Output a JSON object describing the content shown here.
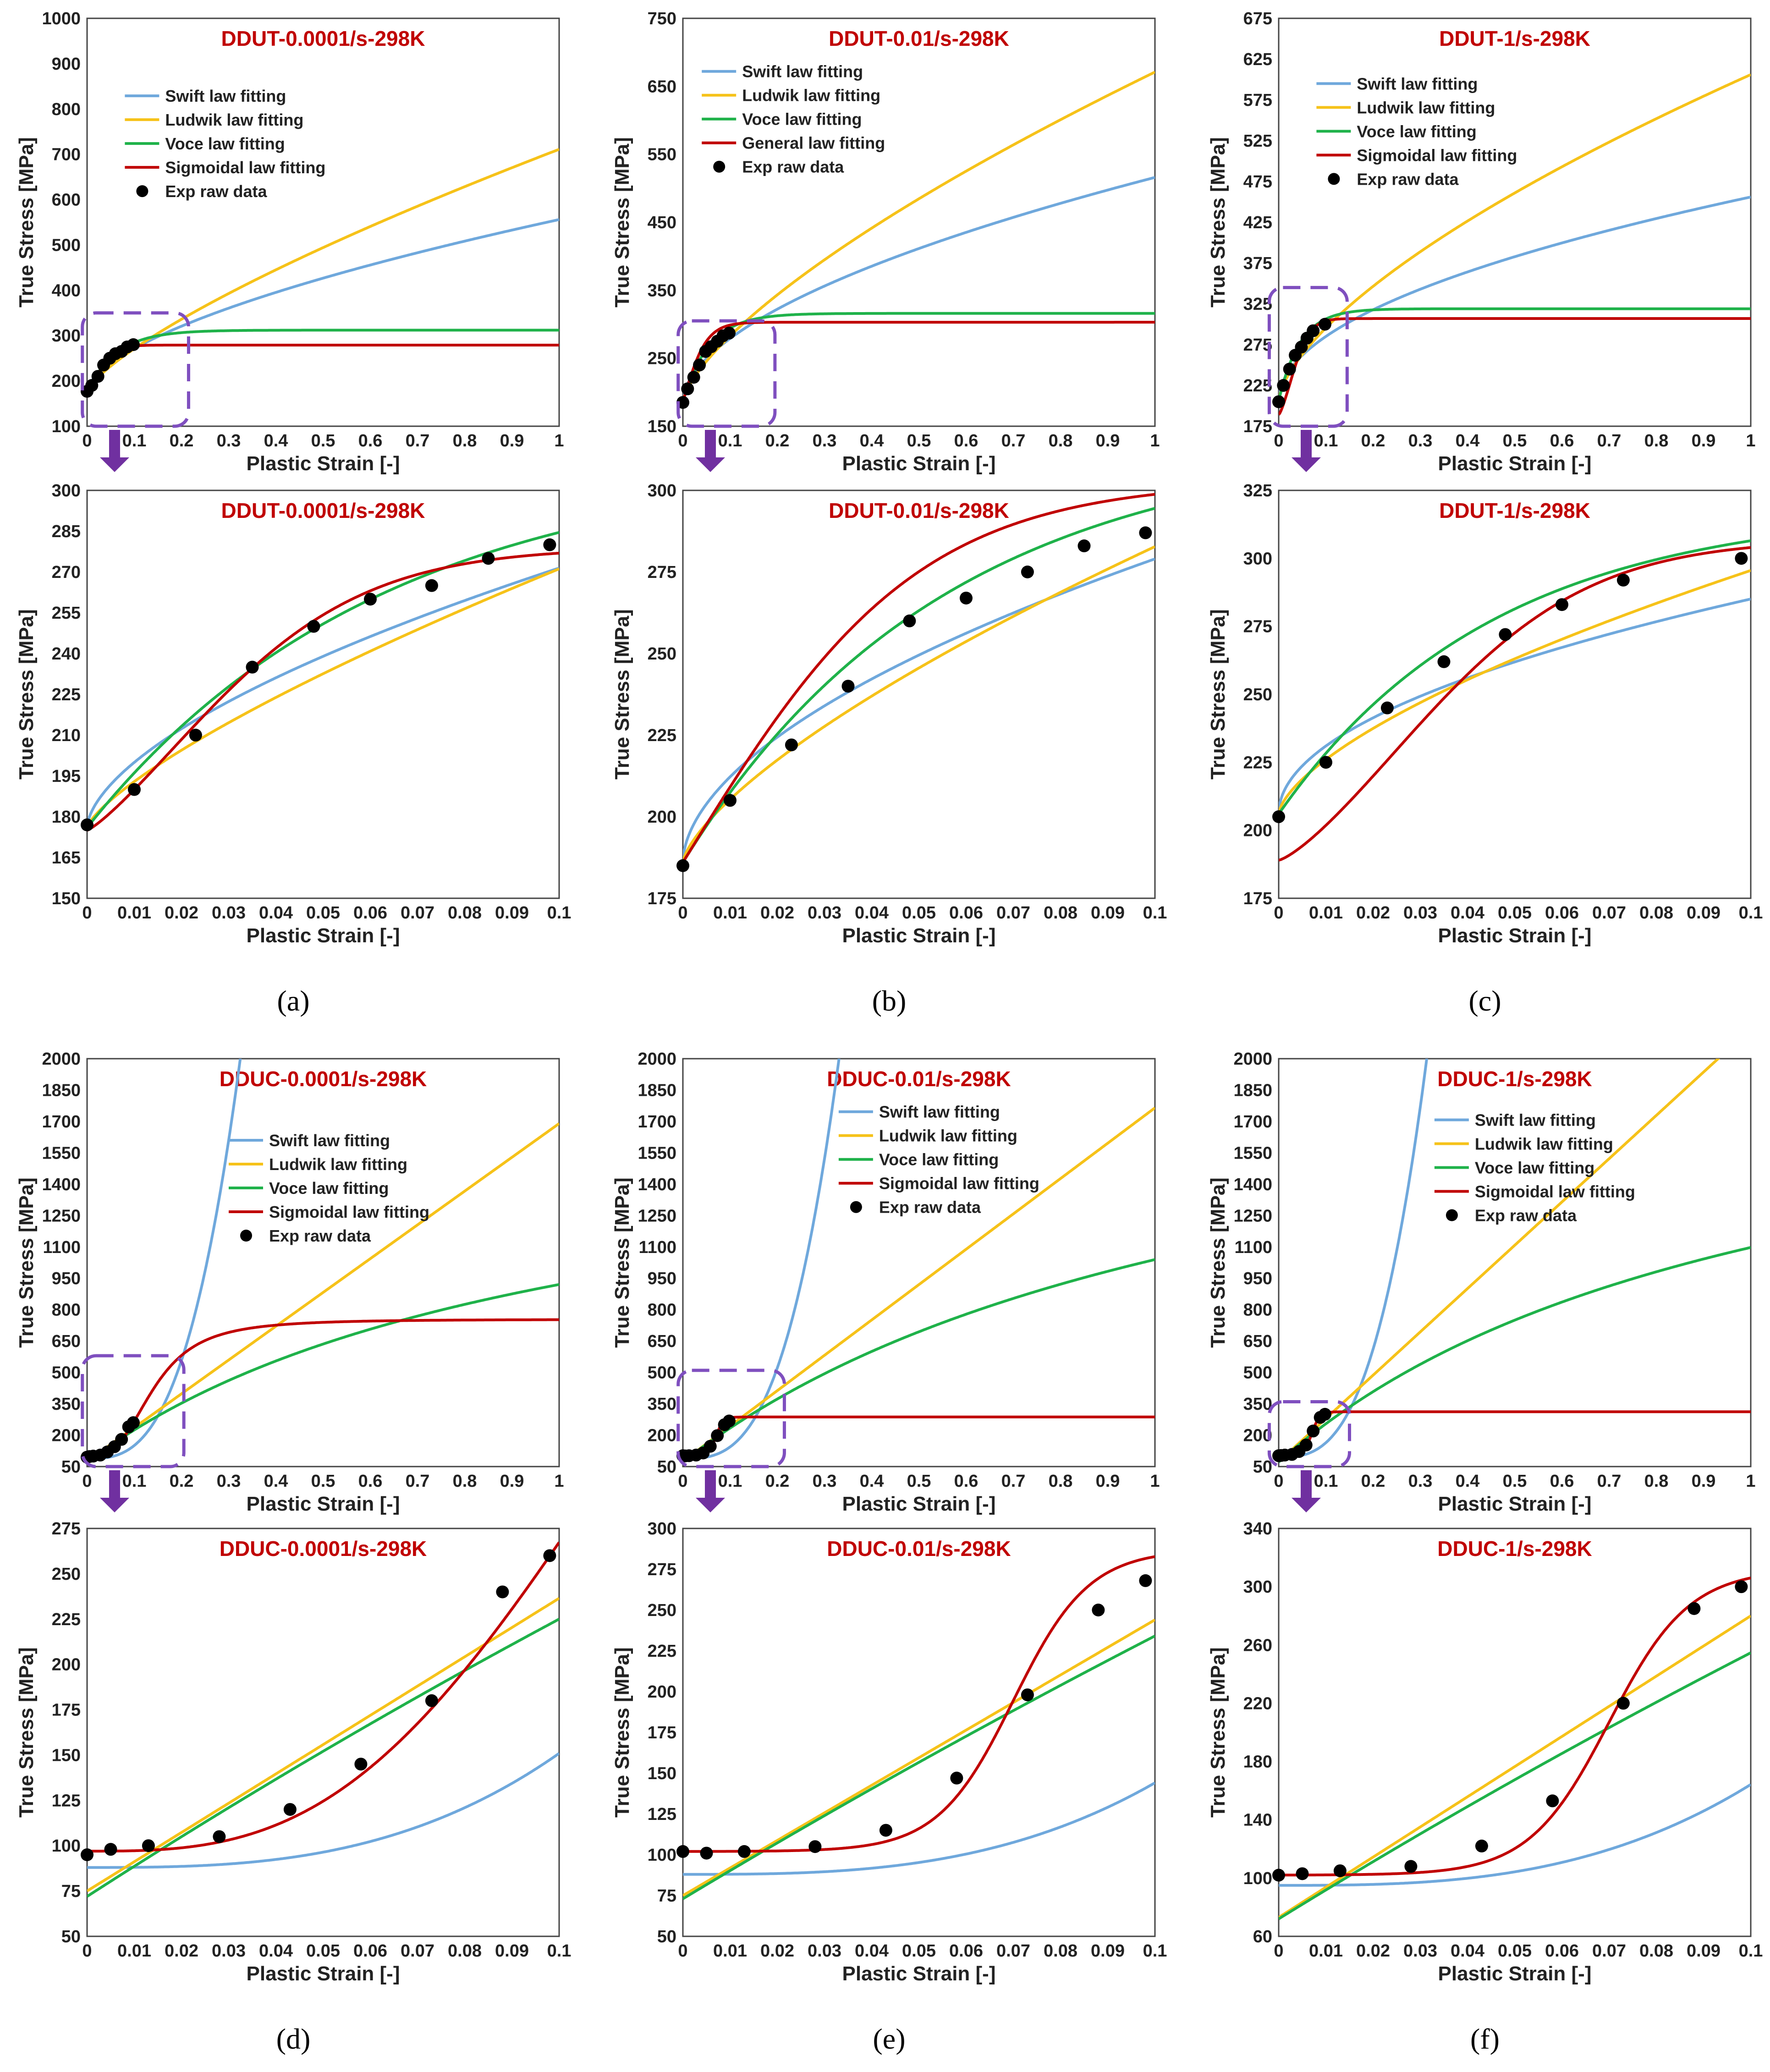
{
  "figure": {
    "captions": [
      "(a)",
      "(b)",
      "(c)",
      "(d)",
      "(e)",
      "(f)"
    ]
  },
  "colors": {
    "swift": "#6fa8dc",
    "ludwik": "#f6c219",
    "voce": "#1fb24a",
    "fourth": "#c00000",
    "exp": "#000000",
    "box": "#7f4fbf",
    "arrow": "#7030a0"
  },
  "chart_data": [
    {
      "type": "line",
      "title": "DDUT-0.0001/s-298K",
      "xlabel": "Plastic Strain [-]",
      "ylabel": "True Stress [MPa]",
      "xlim": [
        0,
        1
      ],
      "ylim": [
        100,
        1000
      ],
      "xticks": [
        "0",
        "0.1",
        "0.2",
        "0.3",
        "0.4",
        "0.5",
        "0.6",
        "0.7",
        "0.8",
        "0.9",
        "1"
      ],
      "yticks": [
        "100",
        "200",
        "300",
        "400",
        "500",
        "600",
        "700",
        "800",
        "900",
        "1000"
      ],
      "legend": [
        "Swift law fitting",
        "Ludwik law fitting",
        "Voce law fitting",
        "Sigmoidal law fitting",
        "Exp raw data"
      ],
      "exp_x": [
        0,
        0.01,
        0.023,
        0.035,
        0.048,
        0.06,
        0.073,
        0.085,
        0.098
      ],
      "exp_y": [
        177,
        190,
        210,
        235,
        250,
        260,
        265,
        275,
        280
      ]
    },
    {
      "type": "line",
      "title": "DDUT-0.01/s-298K",
      "xlabel": "Plastic Strain [-]",
      "ylabel": "True Stress [MPa]",
      "xlim": [
        0,
        1
      ],
      "ylim": [
        150,
        750
      ],
      "xticks": [
        "0",
        "0.1",
        "0.2",
        "0.3",
        "0.4",
        "0.5",
        "0.6",
        "0.7",
        "0.8",
        "0.9",
        "1"
      ],
      "yticks": [
        "150",
        "250",
        "350",
        "450",
        "550",
        "650",
        "750"
      ],
      "legend": [
        "Swift law fitting",
        "Ludwik law fitting",
        "Voce law fitting",
        "General law fitting",
        "Exp raw data"
      ],
      "exp_x": [
        0,
        0.01,
        0.023,
        0.035,
        0.048,
        0.06,
        0.073,
        0.085,
        0.098
      ],
      "exp_y": [
        185,
        205,
        222,
        240,
        260,
        267,
        275,
        283,
        287
      ]
    },
    {
      "type": "line",
      "title": "DDUT-1/s-298K",
      "xlabel": "Plastic Strain [-]",
      "ylabel": "True Stress [MPa]",
      "xlim": [
        0,
        1
      ],
      "ylim": [
        175,
        675
      ],
      "xticks": [
        "0",
        "0.1",
        "0.2",
        "0.3",
        "0.4",
        "0.5",
        "0.6",
        "0.7",
        "0.8",
        "0.9",
        "1"
      ],
      "yticks": [
        "175",
        "225",
        "275",
        "325",
        "375",
        "425",
        "475",
        "525",
        "575",
        "625",
        "675"
      ],
      "legend": [
        "Swift law fitting",
        "Ludwik law fitting",
        "Voce law fitting",
        "Sigmoidal law fitting",
        "Exp raw data"
      ],
      "exp_x": [
        0,
        0.01,
        0.023,
        0.035,
        0.048,
        0.06,
        0.073,
        0.098
      ],
      "exp_y": [
        205,
        225,
        245,
        262,
        272,
        283,
        292,
        300
      ]
    },
    {
      "type": "line",
      "title": "DDUT-0.0001/s-298K",
      "xlabel": "Plastic Strain [-]",
      "ylabel": "True Stress [MPa]",
      "xlim": [
        0,
        0.1
      ],
      "ylim": [
        150,
        300
      ],
      "xticks": [
        "0",
        "0.01",
        "0.02",
        "0.03",
        "0.04",
        "0.05",
        "0.06",
        "0.07",
        "0.08",
        "0.09",
        "0.1"
      ],
      "yticks": [
        "150",
        "165",
        "180",
        "195",
        "210",
        "225",
        "240",
        "255",
        "270",
        "285",
        "300"
      ],
      "exp_x": [
        0,
        0.01,
        0.023,
        0.035,
        0.048,
        0.06,
        0.073,
        0.085,
        0.098
      ],
      "exp_y": [
        177,
        190,
        210,
        235,
        250,
        260,
        265,
        275,
        280
      ]
    },
    {
      "type": "line",
      "title": "DDUT-0.01/s-298K",
      "xlabel": "Plastic Strain [-]",
      "ylabel": "True Stress [MPa]",
      "xlim": [
        0,
        0.1
      ],
      "ylim": [
        175,
        300
      ],
      "xticks": [
        "0",
        "0.01",
        "0.02",
        "0.03",
        "0.04",
        "0.05",
        "0.06",
        "0.07",
        "0.08",
        "0.09",
        "0.1"
      ],
      "yticks": [
        "175",
        "200",
        "225",
        "250",
        "275",
        "300"
      ],
      "exp_x": [
        0,
        0.01,
        0.023,
        0.035,
        0.048,
        0.06,
        0.073,
        0.085,
        0.098
      ],
      "exp_y": [
        185,
        205,
        222,
        240,
        260,
        267,
        275,
        283,
        287
      ]
    },
    {
      "type": "line",
      "title": "DDUT-1/s-298K",
      "xlabel": "Plastic Strain [-]",
      "ylabel": "True Stress [MPa]",
      "xlim": [
        0,
        0.1
      ],
      "ylim": [
        175,
        325
      ],
      "xticks": [
        "0",
        "0.01",
        "0.02",
        "0.03",
        "0.04",
        "0.05",
        "0.06",
        "0.07",
        "0.08",
        "0.09",
        "0.1"
      ],
      "yticks": [
        "175",
        "200",
        "225",
        "250",
        "275",
        "300",
        "325"
      ],
      "exp_x": [
        0,
        0.01,
        0.023,
        0.035,
        0.048,
        0.06,
        0.073,
        0.098
      ],
      "exp_y": [
        205,
        225,
        245,
        262,
        272,
        283,
        292,
        300
      ]
    },
    {
      "type": "line",
      "title": "DDUC-0.0001/s-298K",
      "xlabel": "Plastic Strain [-]",
      "ylabel": "True Stress [MPa]",
      "xlim": [
        0,
        1
      ],
      "ylim": [
        50,
        2000
      ],
      "xticks": [
        "0",
        "0.1",
        "0.2",
        "0.3",
        "0.4",
        "0.5",
        "0.6",
        "0.7",
        "0.8",
        "0.9",
        "1"
      ],
      "yticks": [
        "50",
        "200",
        "350",
        "500",
        "650",
        "800",
        "950",
        "1100",
        "1250",
        "1400",
        "1550",
        "1700",
        "1850",
        "2000"
      ],
      "legend": [
        "Swift law fitting",
        "Ludwik law fitting",
        "Voce law fitting",
        "Sigmoidal law fitting",
        "Exp raw data"
      ],
      "exp_x": [
        0,
        0.005,
        0.013,
        0.028,
        0.043,
        0.058,
        0.073,
        0.088,
        0.098
      ],
      "exp_y": [
        95,
        98,
        100,
        105,
        120,
        145,
        180,
        240,
        260
      ]
    },
    {
      "type": "line",
      "title": "DDUC-0.01/s-298K",
      "xlabel": "Plastic Strain [-]",
      "ylabel": "True Stress [MPa]",
      "xlim": [
        0,
        1
      ],
      "ylim": [
        50,
        2000
      ],
      "xticks": [
        "0",
        "0.1",
        "0.2",
        "0.3",
        "0.4",
        "0.5",
        "0.6",
        "0.7",
        "0.8",
        "0.9",
        "1"
      ],
      "yticks": [
        "50",
        "200",
        "350",
        "500",
        "650",
        "800",
        "950",
        "1100",
        "1250",
        "1400",
        "1550",
        "1700",
        "1850",
        "2000"
      ],
      "legend": [
        "Swift law fitting",
        "Ludwik law fitting",
        "Voce law fitting",
        "Sigmoidal law fitting",
        "Exp raw data"
      ],
      "exp_x": [
        0,
        0.005,
        0.013,
        0.028,
        0.043,
        0.058,
        0.073,
        0.088,
        0.098
      ],
      "exp_y": [
        102,
        101,
        102,
        105,
        115,
        147,
        198,
        250,
        268
      ]
    },
    {
      "type": "line",
      "title": "DDUC-1/s-298K",
      "xlabel": "Plastic Strain [-]",
      "ylabel": "True Stress [MPa]",
      "xlim": [
        0,
        1
      ],
      "ylim": [
        50,
        2000
      ],
      "xticks": [
        "0",
        "0.1",
        "0.2",
        "0.3",
        "0.4",
        "0.5",
        "0.6",
        "0.7",
        "0.8",
        "0.9",
        "1"
      ],
      "yticks": [
        "50",
        "200",
        "350",
        "500",
        "650",
        "800",
        "950",
        "1100",
        "1250",
        "1400",
        "1550",
        "1700",
        "1850",
        "2000"
      ],
      "legend": [
        "Swift law fitting",
        "Ludwik law fitting",
        "Voce law fitting",
        "Sigmoidal law fitting",
        "Exp raw data"
      ],
      "exp_x": [
        0,
        0.005,
        0.013,
        0.028,
        0.043,
        0.058,
        0.073,
        0.088,
        0.098
      ],
      "exp_y": [
        102,
        103,
        105,
        108,
        122,
        153,
        220,
        285,
        300
      ]
    },
    {
      "type": "line",
      "title": "DDUC-0.0001/s-298K",
      "xlabel": "Plastic Strain [-]",
      "ylabel": "True Stress [MPa]",
      "xlim": [
        0,
        0.1
      ],
      "ylim": [
        50,
        275
      ],
      "xticks": [
        "0",
        "0.01",
        "0.02",
        "0.03",
        "0.04",
        "0.05",
        "0.06",
        "0.07",
        "0.08",
        "0.09",
        "0.1"
      ],
      "yticks": [
        "50",
        "75",
        "100",
        "125",
        "150",
        "175",
        "200",
        "225",
        "250",
        "275"
      ],
      "exp_x": [
        0,
        0.005,
        0.013,
        0.028,
        0.043,
        0.058,
        0.073,
        0.088,
        0.098
      ],
      "exp_y": [
        95,
        98,
        100,
        105,
        120,
        145,
        180,
        240,
        260
      ]
    },
    {
      "type": "line",
      "title": "DDUC-0.01/s-298K",
      "xlabel": "Plastic Strain [-]",
      "ylabel": "True Stress [MPa]",
      "xlim": [
        0,
        0.1
      ],
      "ylim": [
        50,
        300
      ],
      "xticks": [
        "0",
        "0.01",
        "0.02",
        "0.03",
        "0.04",
        "0.05",
        "0.06",
        "0.07",
        "0.08",
        "0.09",
        "0.1"
      ],
      "yticks": [
        "50",
        "75",
        "100",
        "125",
        "150",
        "175",
        "200",
        "225",
        "250",
        "275",
        "300"
      ],
      "exp_x": [
        0,
        0.005,
        0.013,
        0.028,
        0.043,
        0.058,
        0.073,
        0.088,
        0.098
      ],
      "exp_y": [
        102,
        101,
        102,
        105,
        115,
        147,
        198,
        250,
        268
      ]
    },
    {
      "type": "line",
      "title": "DDUC-1/s-298K",
      "xlabel": "Plastic Strain [-]",
      "ylabel": "True Stress [MPa]",
      "xlim": [
        0,
        0.1
      ],
      "ylim": [
        60,
        340
      ],
      "xticks": [
        "0",
        "0.01",
        "0.02",
        "0.03",
        "0.04",
        "0.05",
        "0.06",
        "0.07",
        "0.08",
        "0.09",
        "0.1"
      ],
      "yticks": [
        "60",
        "100",
        "140",
        "180",
        "220",
        "260",
        "300",
        "340"
      ],
      "exp_x": [
        0,
        0.005,
        0.013,
        0.028,
        0.043,
        0.058,
        0.073,
        0.088,
        0.098
      ],
      "exp_y": [
        102,
        103,
        105,
        108,
        122,
        153,
        220,
        285,
        300
      ]
    }
  ]
}
